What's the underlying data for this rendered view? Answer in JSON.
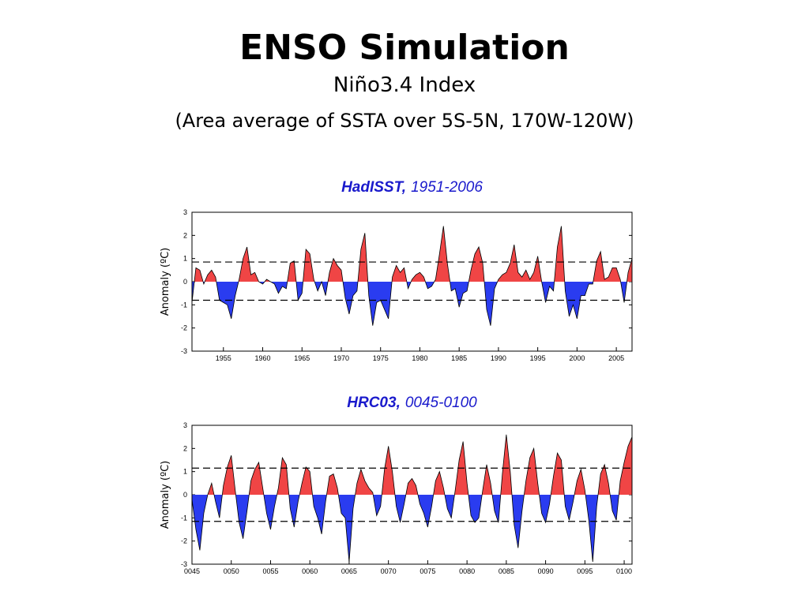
{
  "header": {
    "title": "ENSO Simulation",
    "subtitle": "Niño3.4 Index",
    "note": "(Area average of SSTA over 5S-5N, 170W-120W)"
  },
  "chart_data": [
    {
      "type": "area",
      "title": "HadISST,",
      "subtitle": "1951-2006",
      "y_label": "Anomaly (ºC)",
      "positive_color": "#f04545",
      "negative_color": "#2a3cf0",
      "xlim": [
        1951,
        2007
      ],
      "xticks": [
        1955,
        1960,
        1965,
        1970,
        1975,
        1980,
        1985,
        1990,
        1995,
        2000,
        2005
      ],
      "ylim": [
        -3,
        3
      ],
      "yticks": [
        -3,
        -2,
        -1,
        0,
        1,
        2,
        3
      ],
      "reference_lines": [
        0.85,
        -0.8
      ],
      "x": [
        1951,
        1951.5,
        1952,
        1952.5,
        1953,
        1953.5,
        1954,
        1954.5,
        1955,
        1955.5,
        1956,
        1956.5,
        1957,
        1957.5,
        1958,
        1958.5,
        1959,
        1959.5,
        1960,
        1960.5,
        1961,
        1961.5,
        1962,
        1962.5,
        1963,
        1963.5,
        1964,
        1964.5,
        1965,
        1965.5,
        1966,
        1966.5,
        1967,
        1967.5,
        1968,
        1968.5,
        1969,
        1969.5,
        1970,
        1970.5,
        1971,
        1971.5,
        1972,
        1972.5,
        1973,
        1973.5,
        1974,
        1974.5,
        1975,
        1975.5,
        1976,
        1976.5,
        1977,
        1977.5,
        1978,
        1978.5,
        1979,
        1979.5,
        1980,
        1980.5,
        1981,
        1981.5,
        1982,
        1982.5,
        1983,
        1983.5,
        1984,
        1984.5,
        1985,
        1985.5,
        1986,
        1986.5,
        1987,
        1987.5,
        1988,
        1988.5,
        1989,
        1989.5,
        1990,
        1990.5,
        1991,
        1991.5,
        1992,
        1992.5,
        1993,
        1993.5,
        1994,
        1994.5,
        1995,
        1995.5,
        1996,
        1996.5,
        1997,
        1997.5,
        1998,
        1998.5,
        1999,
        1999.5,
        2000,
        2000.5,
        2001,
        2001.5,
        2002,
        2002.5,
        2003,
        2003.5,
        2004,
        2004.5,
        2005,
        2005.5,
        2006,
        2006.5,
        2007
      ],
      "values": [
        -0.9,
        0.6,
        0.5,
        -0.1,
        0.3,
        0.5,
        0.2,
        -0.8,
        -0.9,
        -1.0,
        -1.6,
        -0.6,
        0.1,
        1.0,
        1.5,
        0.3,
        0.4,
        0.0,
        -0.1,
        0.1,
        0.0,
        -0.1,
        -0.5,
        -0.2,
        -0.3,
        0.8,
        0.9,
        -0.8,
        -0.5,
        1.4,
        1.2,
        0.1,
        -0.4,
        0.0,
        -0.6,
        0.4,
        1.0,
        0.7,
        0.5,
        -0.7,
        -1.4,
        -0.6,
        -0.4,
        1.4,
        2.1,
        -0.6,
        -1.9,
        -0.9,
        -0.8,
        -1.2,
        -1.6,
        0.2,
        0.7,
        0.4,
        0.6,
        -0.3,
        0.1,
        0.3,
        0.4,
        0.2,
        -0.3,
        -0.2,
        0.1,
        1.2,
        2.4,
        0.8,
        -0.4,
        -0.3,
        -1.1,
        -0.5,
        -0.4,
        0.5,
        1.2,
        1.5,
        0.8,
        -1.2,
        -1.9,
        -0.3,
        0.1,
        0.3,
        0.4,
        0.8,
        1.6,
        0.4,
        0.2,
        0.5,
        0.1,
        0.4,
        1.1,
        0.0,
        -0.9,
        -0.2,
        -0.4,
        1.5,
        2.4,
        -0.4,
        -1.5,
        -1.0,
        -1.6,
        -0.6,
        -0.6,
        -0.1,
        -0.1,
        0.9,
        1.3,
        0.1,
        0.2,
        0.6,
        0.6,
        0.1,
        -0.9,
        0.4,
        1.0
      ]
    },
    {
      "type": "area",
      "title": "HRC03,",
      "subtitle": "0045-0100",
      "y_label": "Anomaly (ºC)",
      "positive_color": "#f04545",
      "negative_color": "#2a3cf0",
      "xlim": [
        45,
        101
      ],
      "xticks": [
        {
          "value": 45,
          "label": "0045"
        },
        {
          "value": 50,
          "label": "0050"
        },
        {
          "value": 55,
          "label": "0055"
        },
        {
          "value": 60,
          "label": "0060"
        },
        {
          "value": 65,
          "label": "0065"
        },
        {
          "value": 70,
          "label": "0070"
        },
        {
          "value": 75,
          "label": "0075"
        },
        {
          "value": 80,
          "label": "0080"
        },
        {
          "value": 85,
          "label": "0085"
        },
        {
          "value": 90,
          "label": "0090"
        },
        {
          "value": 95,
          "label": "0095"
        },
        {
          "value": 100,
          "label": "0100"
        }
      ],
      "ylim": [
        -3,
        3
      ],
      "yticks": [
        -3,
        -2,
        -1,
        0,
        1,
        2,
        3
      ],
      "reference_lines": [
        1.15,
        -1.15
      ],
      "x": [
        45,
        45.5,
        46,
        46.5,
        47,
        47.5,
        48,
        48.5,
        49,
        49.5,
        50,
        50.5,
        51,
        51.5,
        52,
        52.5,
        53,
        53.5,
        54,
        54.5,
        55,
        55.5,
        56,
        56.5,
        57,
        57.5,
        58,
        58.5,
        59,
        59.5,
        60,
        60.5,
        61,
        61.5,
        62,
        62.5,
        63,
        63.5,
        64,
        64.5,
        65,
        65.5,
        66,
        66.5,
        67,
        67.5,
        68,
        68.5,
        69,
        69.5,
        70,
        70.5,
        71,
        71.5,
        72,
        72.5,
        73,
        73.5,
        74,
        74.5,
        75,
        75.5,
        76,
        76.5,
        77,
        77.5,
        78,
        78.5,
        79,
        79.5,
        80,
        80.5,
        81,
        81.5,
        82,
        82.5,
        83,
        83.5,
        84,
        84.5,
        85,
        85.5,
        86,
        86.5,
        87,
        87.5,
        88,
        88.5,
        89,
        89.5,
        90,
        90.5,
        91,
        91.5,
        92,
        92.5,
        93,
        93.5,
        94,
        94.5,
        95,
        95.5,
        96,
        96.5,
        97,
        97.5,
        98,
        98.5,
        99,
        99.5,
        100,
        100.5,
        101
      ],
      "values": [
        -0.2,
        -1.5,
        -2.4,
        -0.8,
        0.0,
        0.5,
        -0.3,
        -1.0,
        0.4,
        1.2,
        1.7,
        0.2,
        -1.2,
        -1.9,
        -0.7,
        0.6,
        1.1,
        1.4,
        0.3,
        -0.8,
        -1.5,
        -0.5,
        0.3,
        1.6,
        1.3,
        -0.6,
        -1.4,
        -0.3,
        0.5,
        1.2,
        1.0,
        -0.5,
        -1.0,
        -1.7,
        -0.3,
        0.8,
        0.9,
        0.3,
        -0.8,
        -1.0,
        -2.9,
        -0.6,
        0.5,
        1.1,
        0.6,
        0.3,
        0.1,
        -0.9,
        -0.5,
        1.1,
        2.1,
        1.0,
        -0.5,
        -1.2,
        -0.4,
        0.5,
        0.7,
        0.4,
        -0.4,
        -0.8,
        -1.4,
        -0.5,
        0.6,
        1.0,
        0.3,
        -0.6,
        -1.0,
        0.2,
        1.5,
        2.3,
        0.5,
        -0.9,
        -1.2,
        -1.0,
        0.2,
        1.3,
        0.5,
        -0.7,
        -1.2,
        0.9,
        2.6,
        1.0,
        -1.3,
        -2.3,
        -0.7,
        0.6,
        1.6,
        2.0,
        0.5,
        -0.8,
        -1.2,
        -0.4,
        0.8,
        1.8,
        1.5,
        -0.5,
        -1.1,
        -0.3,
        0.6,
        1.1,
        0.2,
        -1.1,
        -2.9,
        -0.5,
        0.9,
        1.3,
        0.5,
        -0.7,
        -1.1,
        0.6,
        1.4,
        2.1,
        2.5
      ]
    }
  ]
}
